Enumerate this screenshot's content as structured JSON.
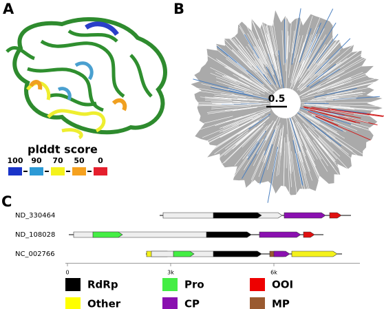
{
  "panel_a": {
    "label": "A",
    "legend_title": "plddt score",
    "levels": [
      {
        "label": 100,
        "color": "#1a34c9"
      },
      {
        "label": 90,
        "color": "#2c9ad6"
      },
      {
        "label": 70,
        "color": "#f4f21c"
      },
      {
        "label": 50,
        "color": "#f5a11f"
      },
      {
        "label": 0,
        "color": "#e51f2d"
      }
    ]
  },
  "panel_b": {
    "label": "B",
    "scale_label": "0.5"
  },
  "panel_c": {
    "label": "C",
    "xlim": [
      -100,
      8400
    ],
    "xticks": [
      0,
      {
        "value": 3000,
        "label": "3k"
      },
      {
        "value": 6000,
        "label": "6k"
      }
    ],
    "genomes": [
      {
        "name": "ND_330464",
        "extent": [
          2680,
          8240
        ],
        "genes": [
          {
            "start": 2780,
            "end": 6240,
            "color": "#eeeeee"
          },
          {
            "start": 4240,
            "end": 5640,
            "color": "#000000"
          },
          {
            "start": 6300,
            "end": 7500,
            "color": "#8a10b0"
          },
          {
            "start": 7620,
            "end": 7960,
            "color": "#e01010"
          }
        ]
      },
      {
        "name": "ND_108028",
        "extent": [
          40,
          7440
        ],
        "genes": [
          {
            "start": 180,
            "end": 5340,
            "color": "#eeeeee"
          },
          {
            "start": 740,
            "end": 1600,
            "color": "#44ee44"
          },
          {
            "start": 4040,
            "end": 5340,
            "color": "#000000"
          },
          {
            "start": 5580,
            "end": 6780,
            "color": "#8a10b0"
          },
          {
            "start": 6860,
            "end": 7180,
            "color": "#e01010"
          }
        ]
      },
      {
        "name": "NC_002766",
        "extent": [
          2280,
          7980
        ],
        "genes": [
          {
            "start": 2300,
            "end": 3020,
            "color": "#f4f21c"
          },
          {
            "start": 2440,
            "end": 5640,
            "color": "#eeeeee"
          },
          {
            "start": 3080,
            "end": 3680,
            "color": "#44ee44"
          },
          {
            "start": 4240,
            "end": 5640,
            "color": "#000000"
          },
          {
            "start": 5880,
            "end": 6400,
            "color": "#9a5a30"
          },
          {
            "start": 6000,
            "end": 6460,
            "color": "#8a10b0"
          },
          {
            "start": 6520,
            "end": 7840,
            "color": "#f4f21c"
          }
        ]
      }
    ],
    "legend": [
      {
        "name": "RdRp",
        "color": "#000000"
      },
      {
        "name": "Pro",
        "color": "#44ee44"
      },
      {
        "name": "OOI",
        "color": "#ee0000"
      },
      {
        "name": "Other",
        "color": "#ffff00"
      },
      {
        "name": "CP",
        "color": "#8a10b0"
      },
      {
        "name": "MP",
        "color": "#9a5a30"
      }
    ]
  }
}
